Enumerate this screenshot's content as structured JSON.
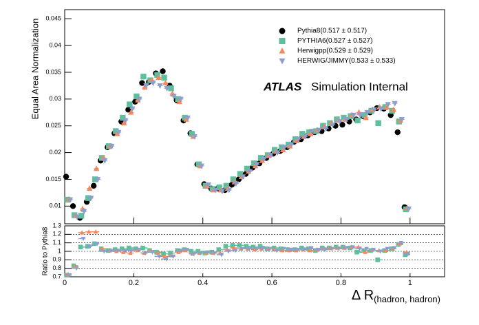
{
  "chart_data": [
    {
      "type": "scatter",
      "y_label": "Equal Area Normalization",
      "annotations": [
        "ATLAS",
        "Simulation Internal"
      ],
      "xlim": [
        0,
        1.1
      ],
      "xticks": [
        0,
        0.2,
        0.4,
        0.6,
        0.8,
        1
      ],
      "ylim": [
        0.0067,
        0.0467
      ],
      "yticks": [
        0.01,
        0.015,
        0.02,
        0.025,
        0.03,
        0.035,
        0.04,
        0.045
      ],
      "legend": "upper right",
      "x": [
        0.01,
        0.03,
        0.05,
        0.07,
        0.09,
        0.11,
        0.13,
        0.15,
        0.17,
        0.19,
        0.21,
        0.23,
        0.25,
        0.27,
        0.29,
        0.31,
        0.33,
        0.35,
        0.37,
        0.39,
        0.41,
        0.43,
        0.45,
        0.47,
        0.49,
        0.51,
        0.53,
        0.55,
        0.57,
        0.59,
        0.61,
        0.63,
        0.65,
        0.67,
        0.69,
        0.71,
        0.73,
        0.75,
        0.77,
        0.79,
        0.81,
        0.83,
        0.85,
        0.87,
        0.89,
        0.91,
        0.93,
        0.95,
        0.97,
        0.99
      ],
      "series": [
        {
          "name": "Pythia8(0.517 ± 0.517)",
          "color": "#000000",
          "marker": "circle",
          "values": [
            0.0155,
            0.01,
            0.0078,
            0.0108,
            0.0138,
            0.0185,
            0.021,
            0.0236,
            0.0258,
            0.028,
            0.0295,
            0.033,
            0.0332,
            0.0348,
            0.0352,
            0.0325,
            0.0298,
            0.026,
            0.0236,
            0.0178,
            0.0141,
            0.0133,
            0.0133,
            0.013,
            0.014,
            0.015,
            0.016,
            0.0172,
            0.018,
            0.019,
            0.0198,
            0.0203,
            0.021,
            0.022,
            0.0225,
            0.0232,
            0.0238,
            0.024,
            0.0245,
            0.025,
            0.0252,
            0.0258,
            0.0262,
            0.0268,
            0.0275,
            0.0283,
            0.0282,
            0.027,
            0.0238,
            0.0098
          ]
        },
        {
          "name": "PYTHIA6(0.527 ± 0.527)",
          "color": "#5dbf9e",
          "marker": "square",
          "values": [
            0.0112,
            0.0083,
            0.0082,
            0.0115,
            0.015,
            0.019,
            0.0212,
            0.024,
            0.0265,
            0.029,
            0.0305,
            0.0342,
            0.0335,
            0.0345,
            0.034,
            0.032,
            0.03,
            0.0265,
            0.0235,
            0.0178,
            0.0138,
            0.0132,
            0.0135,
            0.0138,
            0.015,
            0.016,
            0.017,
            0.018,
            0.019,
            0.0195,
            0.0205,
            0.021,
            0.0215,
            0.0225,
            0.0235,
            0.0238,
            0.024,
            0.025,
            0.0255,
            0.0262,
            0.0265,
            0.0268,
            0.026,
            0.027,
            0.0278,
            0.0255,
            0.0285,
            0.0278,
            0.0258,
            0.0094
          ]
        },
        {
          "name": "Herwigpp(0.529 ± 0.529)",
          "color": "#f4895f",
          "marker": "triangle",
          "values": [
            0.0113,
            0.0082,
            0.0095,
            0.0133,
            0.017,
            0.019,
            0.0212,
            0.0235,
            0.0255,
            0.0275,
            0.0298,
            0.0322,
            0.0335,
            0.034,
            0.033,
            0.031,
            0.0295,
            0.0262,
            0.023,
            0.0175,
            0.0138,
            0.013,
            0.013,
            0.0133,
            0.0145,
            0.0155,
            0.0165,
            0.0175,
            0.0185,
            0.0195,
            0.0202,
            0.0205,
            0.0212,
            0.0222,
            0.023,
            0.0235,
            0.0242,
            0.0248,
            0.0255,
            0.026,
            0.0262,
            0.027,
            0.0275,
            0.0265,
            0.028,
            0.0285,
            0.0285,
            0.028,
            0.026,
            0.0097
          ]
        },
        {
          "name": "HERWIG/JIMMY(0.533 ± 0.533)",
          "color": "#8da0cb",
          "marker": "triangle-down",
          "values": [
            0.0112,
            0.008,
            0.009,
            0.0115,
            0.015,
            0.0185,
            0.0212,
            0.0238,
            0.026,
            0.0282,
            0.03,
            0.0325,
            0.033,
            0.0325,
            0.032,
            0.0305,
            0.03,
            0.0265,
            0.023,
            0.0175,
            0.014,
            0.013,
            0.0128,
            0.013,
            0.0142,
            0.0155,
            0.0165,
            0.0178,
            0.0188,
            0.0195,
            0.02,
            0.021,
            0.0215,
            0.0225,
            0.023,
            0.024,
            0.0242,
            0.0245,
            0.0252,
            0.0258,
            0.0262,
            0.027,
            0.027,
            0.0275,
            0.028,
            0.0282,
            0.029,
            0.0292,
            0.0262,
            0.0095
          ]
        }
      ]
    },
    {
      "type": "step",
      "x_label": "Δ R",
      "x_label_sub": "(hadron, hadron)",
      "y_label": "Ratio to Pythia8",
      "xlim": [
        0,
        1.1
      ],
      "xticks": [
        0,
        0.2,
        0.4,
        0.6,
        0.8,
        1
      ],
      "ylim": [
        0.7,
        1.3
      ],
      "yticks": [
        0.7,
        0.8,
        0.9,
        1,
        1.1,
        1.2,
        1.3
      ],
      "grid": [
        0.8,
        0.9,
        1,
        1.1,
        1.2
      ],
      "bin_width": 0.02,
      "x": [
        0.01,
        0.03,
        0.05,
        0.07,
        0.09,
        0.11,
        0.13,
        0.15,
        0.17,
        0.19,
        0.21,
        0.23,
        0.25,
        0.27,
        0.29,
        0.31,
        0.33,
        0.35,
        0.37,
        0.39,
        0.41,
        0.43,
        0.45,
        0.47,
        0.49,
        0.51,
        0.53,
        0.55,
        0.57,
        0.59,
        0.61,
        0.63,
        0.65,
        0.67,
        0.69,
        0.71,
        0.73,
        0.75,
        0.77,
        0.79,
        0.81,
        0.83,
        0.85,
        0.87,
        0.89,
        0.91,
        0.93,
        0.95,
        0.97,
        0.99
      ],
      "series": [
        {
          "name": "PYTHIA6",
          "color": "#5dbf9e",
          "marker": "square",
          "values": [
            0.72,
            0.83,
            1.05,
            1.06,
            1.09,
            1.03,
            1.01,
            1.02,
            1.03,
            1.04,
            1.03,
            1.04,
            1.01,
            0.99,
            0.97,
            0.98,
            1.01,
            1.02,
            1.0,
            1.0,
            0.98,
            0.99,
            1.02,
            1.06,
            1.07,
            1.07,
            1.06,
            1.05,
            1.06,
            1.03,
            1.04,
            1.03,
            1.02,
            1.02,
            1.04,
            1.03,
            1.01,
            1.04,
            1.04,
            1.05,
            1.05,
            1.04,
            0.99,
            1.01,
            1.01,
            0.9,
            1.01,
            1.03,
            1.08,
            0.96
          ]
        },
        {
          "name": "Herwigpp",
          "color": "#f4895f",
          "marker": "triangle",
          "values": [
            0.73,
            0.82,
            1.22,
            1.23,
            1.23,
            1.03,
            1.01,
            1.0,
            0.99,
            0.98,
            1.01,
            0.98,
            1.01,
            0.98,
            0.94,
            0.95,
            0.99,
            1.01,
            0.97,
            0.98,
            0.98,
            0.98,
            0.98,
            1.02,
            1.04,
            1.03,
            1.03,
            1.02,
            1.03,
            1.03,
            1.02,
            1.01,
            1.01,
            1.01,
            1.02,
            1.01,
            1.02,
            1.03,
            1.04,
            1.04,
            1.04,
            1.05,
            1.05,
            0.99,
            1.02,
            1.01,
            1.01,
            1.03,
            1.09,
            0.99
          ]
        },
        {
          "name": "HERWIG/JIMMY",
          "color": "#8da0cb",
          "marker": "triangle-down",
          "values": [
            0.72,
            0.8,
            1.15,
            1.06,
            1.09,
            1.0,
            1.01,
            1.01,
            1.01,
            1.01,
            1.02,
            0.98,
            0.99,
            0.94,
            0.91,
            0.94,
            1.01,
            1.02,
            0.97,
            0.98,
            0.99,
            0.98,
            0.96,
            1.0,
            1.01,
            1.03,
            1.03,
            1.03,
            1.04,
            1.03,
            1.01,
            1.03,
            1.02,
            1.02,
            1.02,
            1.04,
            1.02,
            1.02,
            1.03,
            1.03,
            1.04,
            1.05,
            1.03,
            1.03,
            1.02,
            1.0,
            1.03,
            1.04,
            1.1,
            0.97
          ]
        }
      ]
    }
  ]
}
